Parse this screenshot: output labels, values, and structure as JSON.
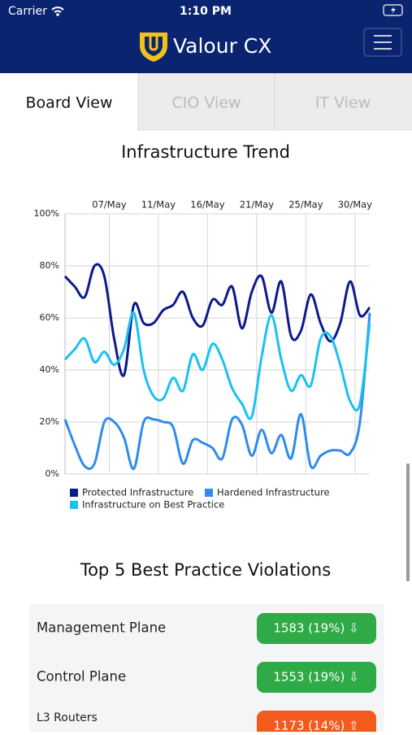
{
  "status_bar": {
    "carrier": "Carrier",
    "time": "1:10 PM"
  },
  "header": {
    "brand": "Valour CX"
  },
  "tabs": [
    "Board View",
    "CIO View",
    "IT View"
  ],
  "chart_data": {
    "type": "line",
    "title": "Infrastructure Trend",
    "x": [
      0,
      1,
      2,
      3,
      4,
      5,
      6,
      7,
      8,
      9,
      10,
      11,
      12,
      13,
      14,
      15,
      16,
      17,
      18,
      19,
      20,
      21,
      22,
      23,
      24,
      25,
      26,
      27,
      28,
      29,
      30,
      31
    ],
    "xlim": [
      0,
      31
    ],
    "xticks": [
      {
        "value": 4.5,
        "label": "07/May"
      },
      {
        "value": 9.5,
        "label": "11/May"
      },
      {
        "value": 14.5,
        "label": "16/May"
      },
      {
        "value": 19.5,
        "label": "21/May"
      },
      {
        "value": 24.5,
        "label": "25/May"
      },
      {
        "value": 29.5,
        "label": "30/May"
      }
    ],
    "ylim": [
      0,
      100
    ],
    "yticks": [
      {
        "value": 0,
        "label": "0%"
      },
      {
        "value": 20,
        "label": "20%"
      },
      {
        "value": 40,
        "label": "40%"
      },
      {
        "value": 60,
        "label": "60%"
      },
      {
        "value": 80,
        "label": "80%"
      },
      {
        "value": 100,
        "label": "100%"
      }
    ],
    "grid": true,
    "series": [
      {
        "name": "Protected Infrastructure",
        "color": "#0d1a8a",
        "values": [
          76,
          72,
          68,
          80,
          76,
          52,
          38,
          65,
          58,
          58,
          63,
          65,
          70,
          60,
          57,
          67,
          65,
          72,
          56,
          70,
          76,
          62,
          74,
          53,
          55,
          69,
          58,
          51,
          58,
          74,
          61,
          64
        ]
      },
      {
        "name": "Hardened Infrastructure",
        "color": "#2e8cec",
        "values": [
          21,
          11,
          3,
          4,
          20,
          20,
          14,
          2,
          20,
          21,
          20,
          18,
          4,
          13,
          12,
          10,
          6,
          21,
          19,
          7,
          17,
          8,
          15,
          6,
          23,
          3,
          7,
          9,
          9,
          8,
          20,
          62
        ]
      },
      {
        "name": "Infrastructure on Best Practice",
        "color": "#1cc0f2",
        "values": [
          44,
          48,
          52,
          43,
          47,
          42,
          48,
          62,
          40,
          30,
          29,
          37,
          32,
          46,
          40,
          50,
          44,
          33,
          27,
          22,
          45,
          61,
          44,
          32,
          38,
          34,
          52,
          53,
          42,
          28,
          27,
          58
        ]
      }
    ]
  },
  "violations": {
    "title": "Top 5 Best Practice Violations",
    "rows": [
      {
        "label": "Management Plane",
        "badge": "1583 (19%) ⇩"
      },
      {
        "label": "Control Plane",
        "badge": "1553 (19%) ⇩"
      },
      {
        "label": "L3 Routers",
        "badge": "1173 (14%) ⇧"
      }
    ]
  }
}
